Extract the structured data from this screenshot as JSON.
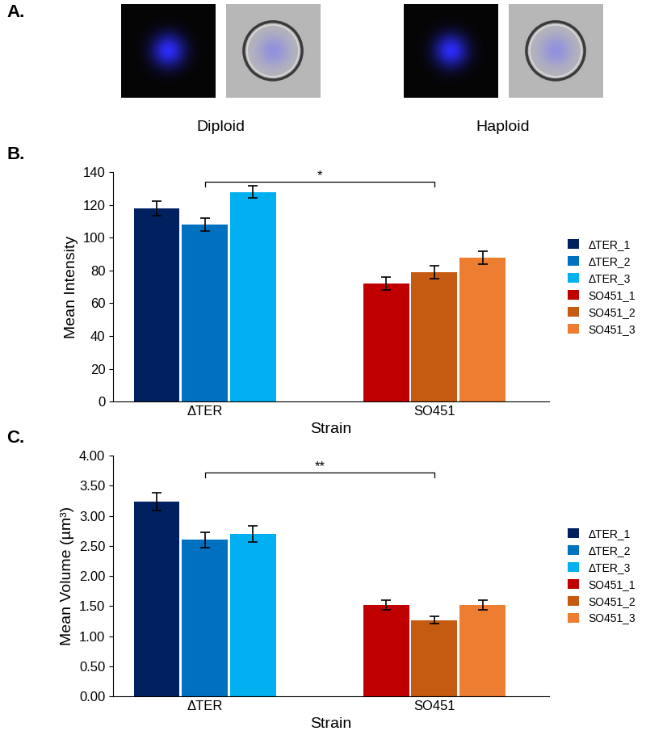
{
  "image_panel": {
    "label": "A.",
    "images": [
      {
        "caption": "Diploid"
      },
      {
        "caption": "Haploid"
      }
    ]
  },
  "chart_data": [
    {
      "type": "bar",
      "panel_label": "B.",
      "x_label": "Strain",
      "y_label": "Mean Intensity",
      "categories": [
        "ΔTER",
        "SO451"
      ],
      "series": [
        {
          "name": "ΔTER_1",
          "color": "#002060",
          "values": [
            118,
            null
          ],
          "errors": [
            4.5,
            null
          ]
        },
        {
          "name": "ΔTER_2",
          "color": "#0070C0",
          "values": [
            108,
            null
          ],
          "errors": [
            4,
            null
          ]
        },
        {
          "name": "ΔTER_3",
          "color": "#00B0F0",
          "values": [
            128,
            null
          ],
          "errors": [
            3.5,
            null
          ]
        },
        {
          "name": "SO451_1",
          "color": "#C00000",
          "values": [
            null,
            72
          ],
          "errors": [
            null,
            4
          ]
        },
        {
          "name": "SO451_2",
          "color": "#C55A11",
          "values": [
            null,
            79
          ],
          "errors": [
            null,
            4
          ]
        },
        {
          "name": "SO451_3",
          "color": "#ED7D31",
          "values": [
            null,
            88
          ],
          "errors": [
            null,
            4
          ]
        }
      ],
      "ylim": [
        0,
        140
      ],
      "yticks": [
        0,
        20,
        40,
        60,
        80,
        100,
        120,
        140
      ],
      "grid": false,
      "legend": "right",
      "annotations": [
        {
          "text": "*",
          "from": "ΔTER_2",
          "to": "SO451_2",
          "y": 134
        }
      ]
    },
    {
      "type": "bar",
      "panel_label": "C.",
      "x_label": "Strain",
      "y_label": "Mean Volume (µm³)",
      "categories": [
        "ΔTER",
        "SO451"
      ],
      "series": [
        {
          "name": "ΔTER_1",
          "color": "#002060",
          "values": [
            3.24,
            null
          ],
          "errors": [
            0.15,
            null
          ]
        },
        {
          "name": "ΔTER_2",
          "color": "#0070C0",
          "values": [
            2.6,
            null
          ],
          "errors": [
            0.13,
            null
          ]
        },
        {
          "name": "ΔTER_3",
          "color": "#00B0F0",
          "values": [
            2.7,
            null
          ],
          "errors": [
            0.14,
            null
          ]
        },
        {
          "name": "SO451_1",
          "color": "#C00000",
          "values": [
            null,
            1.52
          ],
          "errors": [
            null,
            0.08
          ]
        },
        {
          "name": "SO451_2",
          "color": "#C55A11",
          "values": [
            null,
            1.27
          ],
          "errors": [
            null,
            0.06
          ]
        },
        {
          "name": "SO451_3",
          "color": "#ED7D31",
          "values": [
            null,
            1.52
          ],
          "errors": [
            null,
            0.08
          ]
        }
      ],
      "ylim": [
        0,
        4
      ],
      "yticks": [
        {
          "value": 0,
          "label": "0.00"
        },
        {
          "value": 0.5,
          "label": "0.50"
        },
        {
          "value": 1,
          "label": "1.00"
        },
        {
          "value": 1.5,
          "label": "1.50"
        },
        {
          "value": 2,
          "label": "2.00"
        },
        {
          "value": 2.5,
          "label": "2.50"
        },
        {
          "value": 3,
          "label": "3.00"
        },
        {
          "value": 3.5,
          "label": "3.50"
        },
        {
          "value": 4,
          "label": "4.00"
        }
      ],
      "grid": false,
      "legend": "right",
      "annotations": [
        {
          "text": "**",
          "from": "ΔTER_2",
          "to": "SO451_2",
          "y": 3.72
        }
      ]
    }
  ]
}
